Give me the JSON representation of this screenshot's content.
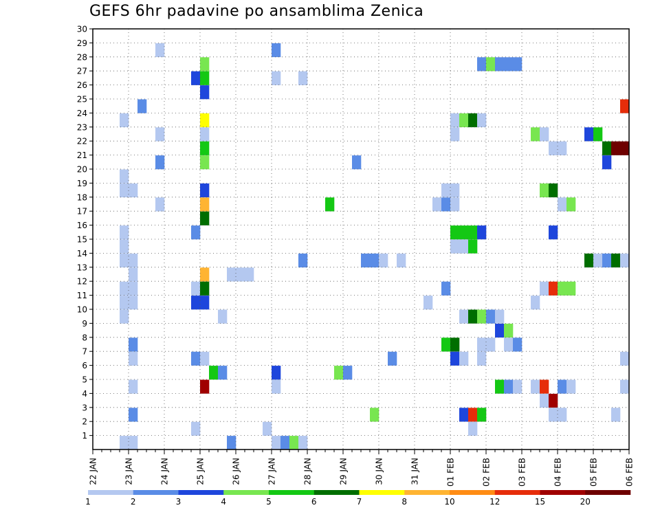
{
  "title": "GEFS 6hr padavine po ansamblima Zenica",
  "chart_data": {
    "type": "heatmap",
    "title": "GEFS 6hr padavine po ansamblima Zenica",
    "x_tick_labels": [
      "22 JAN",
      "23 JAN",
      "24 JAN",
      "25 JAN",
      "26 JAN",
      "27 JAN",
      "28 JAN",
      "29 JAN",
      "30 JAN",
      "31 JAN",
      "01 FEB",
      "02 FEB",
      "03 FEB",
      "04 FEB",
      "05 FEB",
      "06 FEB"
    ],
    "y_tick_labels": [
      "1",
      "2",
      "3",
      "4",
      "5",
      "6",
      "7",
      "8",
      "9",
      "10",
      "11",
      "12",
      "13",
      "14",
      "15",
      "16",
      "17",
      "18",
      "19",
      "20",
      "21",
      "22",
      "23",
      "24",
      "25",
      "26",
      "27",
      "28",
      "29",
      "30"
    ],
    "x_range_steps_6h": [
      0,
      60
    ],
    "y_range_members": [
      0,
      30
    ],
    "grid": true,
    "legend_position": "bottom",
    "legend_thresholds": [
      "1",
      "2",
      "3",
      "4",
      "5",
      "6",
      "7",
      "8",
      "10",
      "12",
      "15",
      "20"
    ],
    "legend_colors": [
      "#b4c8f0",
      "#5a8ce6",
      "#1e46dc",
      "#78e650",
      "#14c814",
      "#006e00",
      "#ffff00",
      "#ffb432",
      "#ff8c14",
      "#e62d0a",
      "#a00000",
      "#6e0000"
    ],
    "cells": [
      {
        "member": 1,
        "step": 4,
        "level": 1
      },
      {
        "member": 1,
        "step": 5,
        "level": 1
      },
      {
        "member": 1,
        "step": 16,
        "level": 2
      },
      {
        "member": 1,
        "step": 21,
        "level": 1
      },
      {
        "member": 1,
        "step": 22,
        "level": 2
      },
      {
        "member": 1,
        "step": 23,
        "level": 4
      },
      {
        "member": 1,
        "step": 24,
        "level": 1
      },
      {
        "member": 2,
        "step": 12,
        "level": 1
      },
      {
        "member": 2,
        "step": 20,
        "level": 1
      },
      {
        "member": 2,
        "step": 43,
        "level": 1
      },
      {
        "member": 3,
        "step": 5,
        "level": 2
      },
      {
        "member": 3,
        "step": 32,
        "level": 4
      },
      {
        "member": 3,
        "step": 42,
        "level": 3
      },
      {
        "member": 3,
        "step": 43,
        "level": 10
      },
      {
        "member": 3,
        "step": 44,
        "level": 5
      },
      {
        "member": 3,
        "step": 52,
        "level": 1
      },
      {
        "member": 3,
        "step": 53,
        "level": 1
      },
      {
        "member": 3,
        "step": 59,
        "level": 1
      },
      {
        "member": 4,
        "step": 51,
        "level": 1
      },
      {
        "member": 4,
        "step": 52,
        "level": 11
      },
      {
        "member": 5,
        "step": 5,
        "level": 1
      },
      {
        "member": 5,
        "step": 13,
        "level": 11
      },
      {
        "member": 5,
        "step": 21,
        "level": 1
      },
      {
        "member": 5,
        "step": 46,
        "level": 5
      },
      {
        "member": 5,
        "step": 47,
        "level": 2
      },
      {
        "member": 5,
        "step": 48,
        "level": 1
      },
      {
        "member": 5,
        "step": 50,
        "level": 1
      },
      {
        "member": 5,
        "step": 51,
        "level": 10
      },
      {
        "member": 5,
        "step": 53,
        "level": 2
      },
      {
        "member": 5,
        "step": 54,
        "level": 1
      },
      {
        "member": 5,
        "step": 60,
        "level": 1
      },
      {
        "member": 6,
        "step": 14,
        "level": 5
      },
      {
        "member": 6,
        "step": 15,
        "level": 2
      },
      {
        "member": 6,
        "step": 21,
        "level": 3
      },
      {
        "member": 6,
        "step": 28,
        "level": 4
      },
      {
        "member": 6,
        "step": 29,
        "level": 2
      },
      {
        "member": 7,
        "step": 5,
        "level": 1
      },
      {
        "member": 7,
        "step": 12,
        "level": 2
      },
      {
        "member": 7,
        "step": 13,
        "level": 1
      },
      {
        "member": 7,
        "step": 34,
        "level": 2
      },
      {
        "member": 7,
        "step": 41,
        "level": 3
      },
      {
        "member": 7,
        "step": 42,
        "level": 1
      },
      {
        "member": 7,
        "step": 44,
        "level": 1
      },
      {
        "member": 7,
        "step": 60,
        "level": 1
      },
      {
        "member": 8,
        "step": 5,
        "level": 2
      },
      {
        "member": 8,
        "step": 40,
        "level": 5
      },
      {
        "member": 8,
        "step": 41,
        "level": 6
      },
      {
        "member": 8,
        "step": 44,
        "level": 1
      },
      {
        "member": 8,
        "step": 45,
        "level": 1
      },
      {
        "member": 8,
        "step": 47,
        "level": 1
      },
      {
        "member": 8,
        "step": 48,
        "level": 2
      },
      {
        "member": 9,
        "step": 46,
        "level": 3
      },
      {
        "member": 9,
        "step": 47,
        "level": 4
      },
      {
        "member": 10,
        "step": 4,
        "level": 1
      },
      {
        "member": 10,
        "step": 15,
        "level": 1
      },
      {
        "member": 10,
        "step": 42,
        "level": 1
      },
      {
        "member": 10,
        "step": 43,
        "level": 6
      },
      {
        "member": 10,
        "step": 44,
        "level": 4
      },
      {
        "member": 10,
        "step": 45,
        "level": 2
      },
      {
        "member": 10,
        "step": 46,
        "level": 1
      },
      {
        "member": 11,
        "step": 4,
        "level": 1
      },
      {
        "member": 11,
        "step": 5,
        "level": 1
      },
      {
        "member": 11,
        "step": 12,
        "level": 3
      },
      {
        "member": 11,
        "step": 13,
        "level": 3
      },
      {
        "member": 11,
        "step": 38,
        "level": 1
      },
      {
        "member": 11,
        "step": 50,
        "level": 1
      },
      {
        "member": 12,
        "step": 4,
        "level": 1
      },
      {
        "member": 12,
        "step": 5,
        "level": 1
      },
      {
        "member": 12,
        "step": 12,
        "level": 1
      },
      {
        "member": 12,
        "step": 13,
        "level": 6
      },
      {
        "member": 12,
        "step": 40,
        "level": 2
      },
      {
        "member": 12,
        "step": 51,
        "level": 1
      },
      {
        "member": 12,
        "step": 52,
        "level": 10
      },
      {
        "member": 12,
        "step": 53,
        "level": 4
      },
      {
        "member": 12,
        "step": 54,
        "level": 4
      },
      {
        "member": 13,
        "step": 5,
        "level": 1
      },
      {
        "member": 13,
        "step": 13,
        "level": 8
      },
      {
        "member": 13,
        "step": 16,
        "level": 1
      },
      {
        "member": 13,
        "step": 17,
        "level": 1
      },
      {
        "member": 13,
        "step": 18,
        "level": 1
      },
      {
        "member": 14,
        "step": 4,
        "level": 1
      },
      {
        "member": 14,
        "step": 5,
        "level": 1
      },
      {
        "member": 14,
        "step": 24,
        "level": 2
      },
      {
        "member": 14,
        "step": 31,
        "level": 2
      },
      {
        "member": 14,
        "step": 32,
        "level": 2
      },
      {
        "member": 14,
        "step": 33,
        "level": 1
      },
      {
        "member": 14,
        "step": 35,
        "level": 1
      },
      {
        "member": 14,
        "step": 56,
        "level": 6
      },
      {
        "member": 14,
        "step": 57,
        "level": 1
      },
      {
        "member": 14,
        "step": 58,
        "level": 2
      },
      {
        "member": 14,
        "step": 59,
        "level": 6
      },
      {
        "member": 14,
        "step": 60,
        "level": 1
      },
      {
        "member": 15,
        "step": 4,
        "level": 1
      },
      {
        "member": 15,
        "step": 41,
        "level": 1
      },
      {
        "member": 15,
        "step": 42,
        "level": 1
      },
      {
        "member": 15,
        "step": 43,
        "level": 5
      },
      {
        "member": 16,
        "step": 4,
        "level": 1
      },
      {
        "member": 16,
        "step": 12,
        "level": 2
      },
      {
        "member": 16,
        "step": 41,
        "level": 5
      },
      {
        "member": 16,
        "step": 42,
        "level": 5
      },
      {
        "member": 16,
        "step": 43,
        "level": 5
      },
      {
        "member": 16,
        "step": 44,
        "level": 3
      },
      {
        "member": 16,
        "step": 52,
        "level": 3
      },
      {
        "member": 17,
        "step": 13,
        "level": 6
      },
      {
        "member": 18,
        "step": 8,
        "level": 1
      },
      {
        "member": 18,
        "step": 13,
        "level": 8
      },
      {
        "member": 18,
        "step": 27,
        "level": 5
      },
      {
        "member": 18,
        "step": 39,
        "level": 1
      },
      {
        "member": 18,
        "step": 40,
        "level": 2
      },
      {
        "member": 18,
        "step": 41,
        "level": 1
      },
      {
        "member": 18,
        "step": 53,
        "level": 1
      },
      {
        "member": 18,
        "step": 54,
        "level": 4
      },
      {
        "member": 19,
        "step": 4,
        "level": 1
      },
      {
        "member": 19,
        "step": 5,
        "level": 1
      },
      {
        "member": 19,
        "step": 13,
        "level": 3
      },
      {
        "member": 19,
        "step": 40,
        "level": 1
      },
      {
        "member": 19,
        "step": 41,
        "level": 1
      },
      {
        "member": 19,
        "step": 51,
        "level": 4
      },
      {
        "member": 19,
        "step": 52,
        "level": 6
      },
      {
        "member": 20,
        "step": 4,
        "level": 1
      },
      {
        "member": 21,
        "step": 8,
        "level": 2
      },
      {
        "member": 21,
        "step": 13,
        "level": 4
      },
      {
        "member": 21,
        "step": 30,
        "level": 2
      },
      {
        "member": 21,
        "step": 58,
        "level": 3
      },
      {
        "member": 22,
        "step": 13,
        "level": 5
      },
      {
        "member": 22,
        "step": 52,
        "level": 1
      },
      {
        "member": 22,
        "step": 53,
        "level": 1
      },
      {
        "member": 22,
        "step": 58,
        "level": 6
      },
      {
        "member": 22,
        "step": 59,
        "level": 12
      },
      {
        "member": 22,
        "step": 60,
        "level": 12
      },
      {
        "member": 23,
        "step": 8,
        "level": 1
      },
      {
        "member": 23,
        "step": 13,
        "level": 1
      },
      {
        "member": 23,
        "step": 41,
        "level": 1
      },
      {
        "member": 23,
        "step": 50,
        "level": 4
      },
      {
        "member": 23,
        "step": 51,
        "level": 1
      },
      {
        "member": 23,
        "step": 56,
        "level": 3
      },
      {
        "member": 23,
        "step": 57,
        "level": 5
      },
      {
        "member": 24,
        "step": 4,
        "level": 1
      },
      {
        "member": 24,
        "step": 13,
        "level": 7
      },
      {
        "member": 24,
        "step": 41,
        "level": 1
      },
      {
        "member": 24,
        "step": 42,
        "level": 4
      },
      {
        "member": 24,
        "step": 43,
        "level": 6
      },
      {
        "member": 24,
        "step": 44,
        "level": 1
      },
      {
        "member": 25,
        "step": 6,
        "level": 2
      },
      {
        "member": 25,
        "step": 60,
        "level": 10
      },
      {
        "member": 26,
        "step": 13,
        "level": 3
      },
      {
        "member": 27,
        "step": 12,
        "level": 3
      },
      {
        "member": 27,
        "step": 13,
        "level": 5
      },
      {
        "member": 27,
        "step": 21,
        "level": 1
      },
      {
        "member": 27,
        "step": 24,
        "level": 1
      },
      {
        "member": 28,
        "step": 13,
        "level": 4
      },
      {
        "member": 28,
        "step": 44,
        "level": 2
      },
      {
        "member": 28,
        "step": 45,
        "level": 4
      },
      {
        "member": 28,
        "step": 46,
        "level": 2
      },
      {
        "member": 28,
        "step": 47,
        "level": 2
      },
      {
        "member": 28,
        "step": 48,
        "level": 2
      },
      {
        "member": 29,
        "step": 8,
        "level": 1
      },
      {
        "member": 29,
        "step": 21,
        "level": 2
      }
    ]
  }
}
